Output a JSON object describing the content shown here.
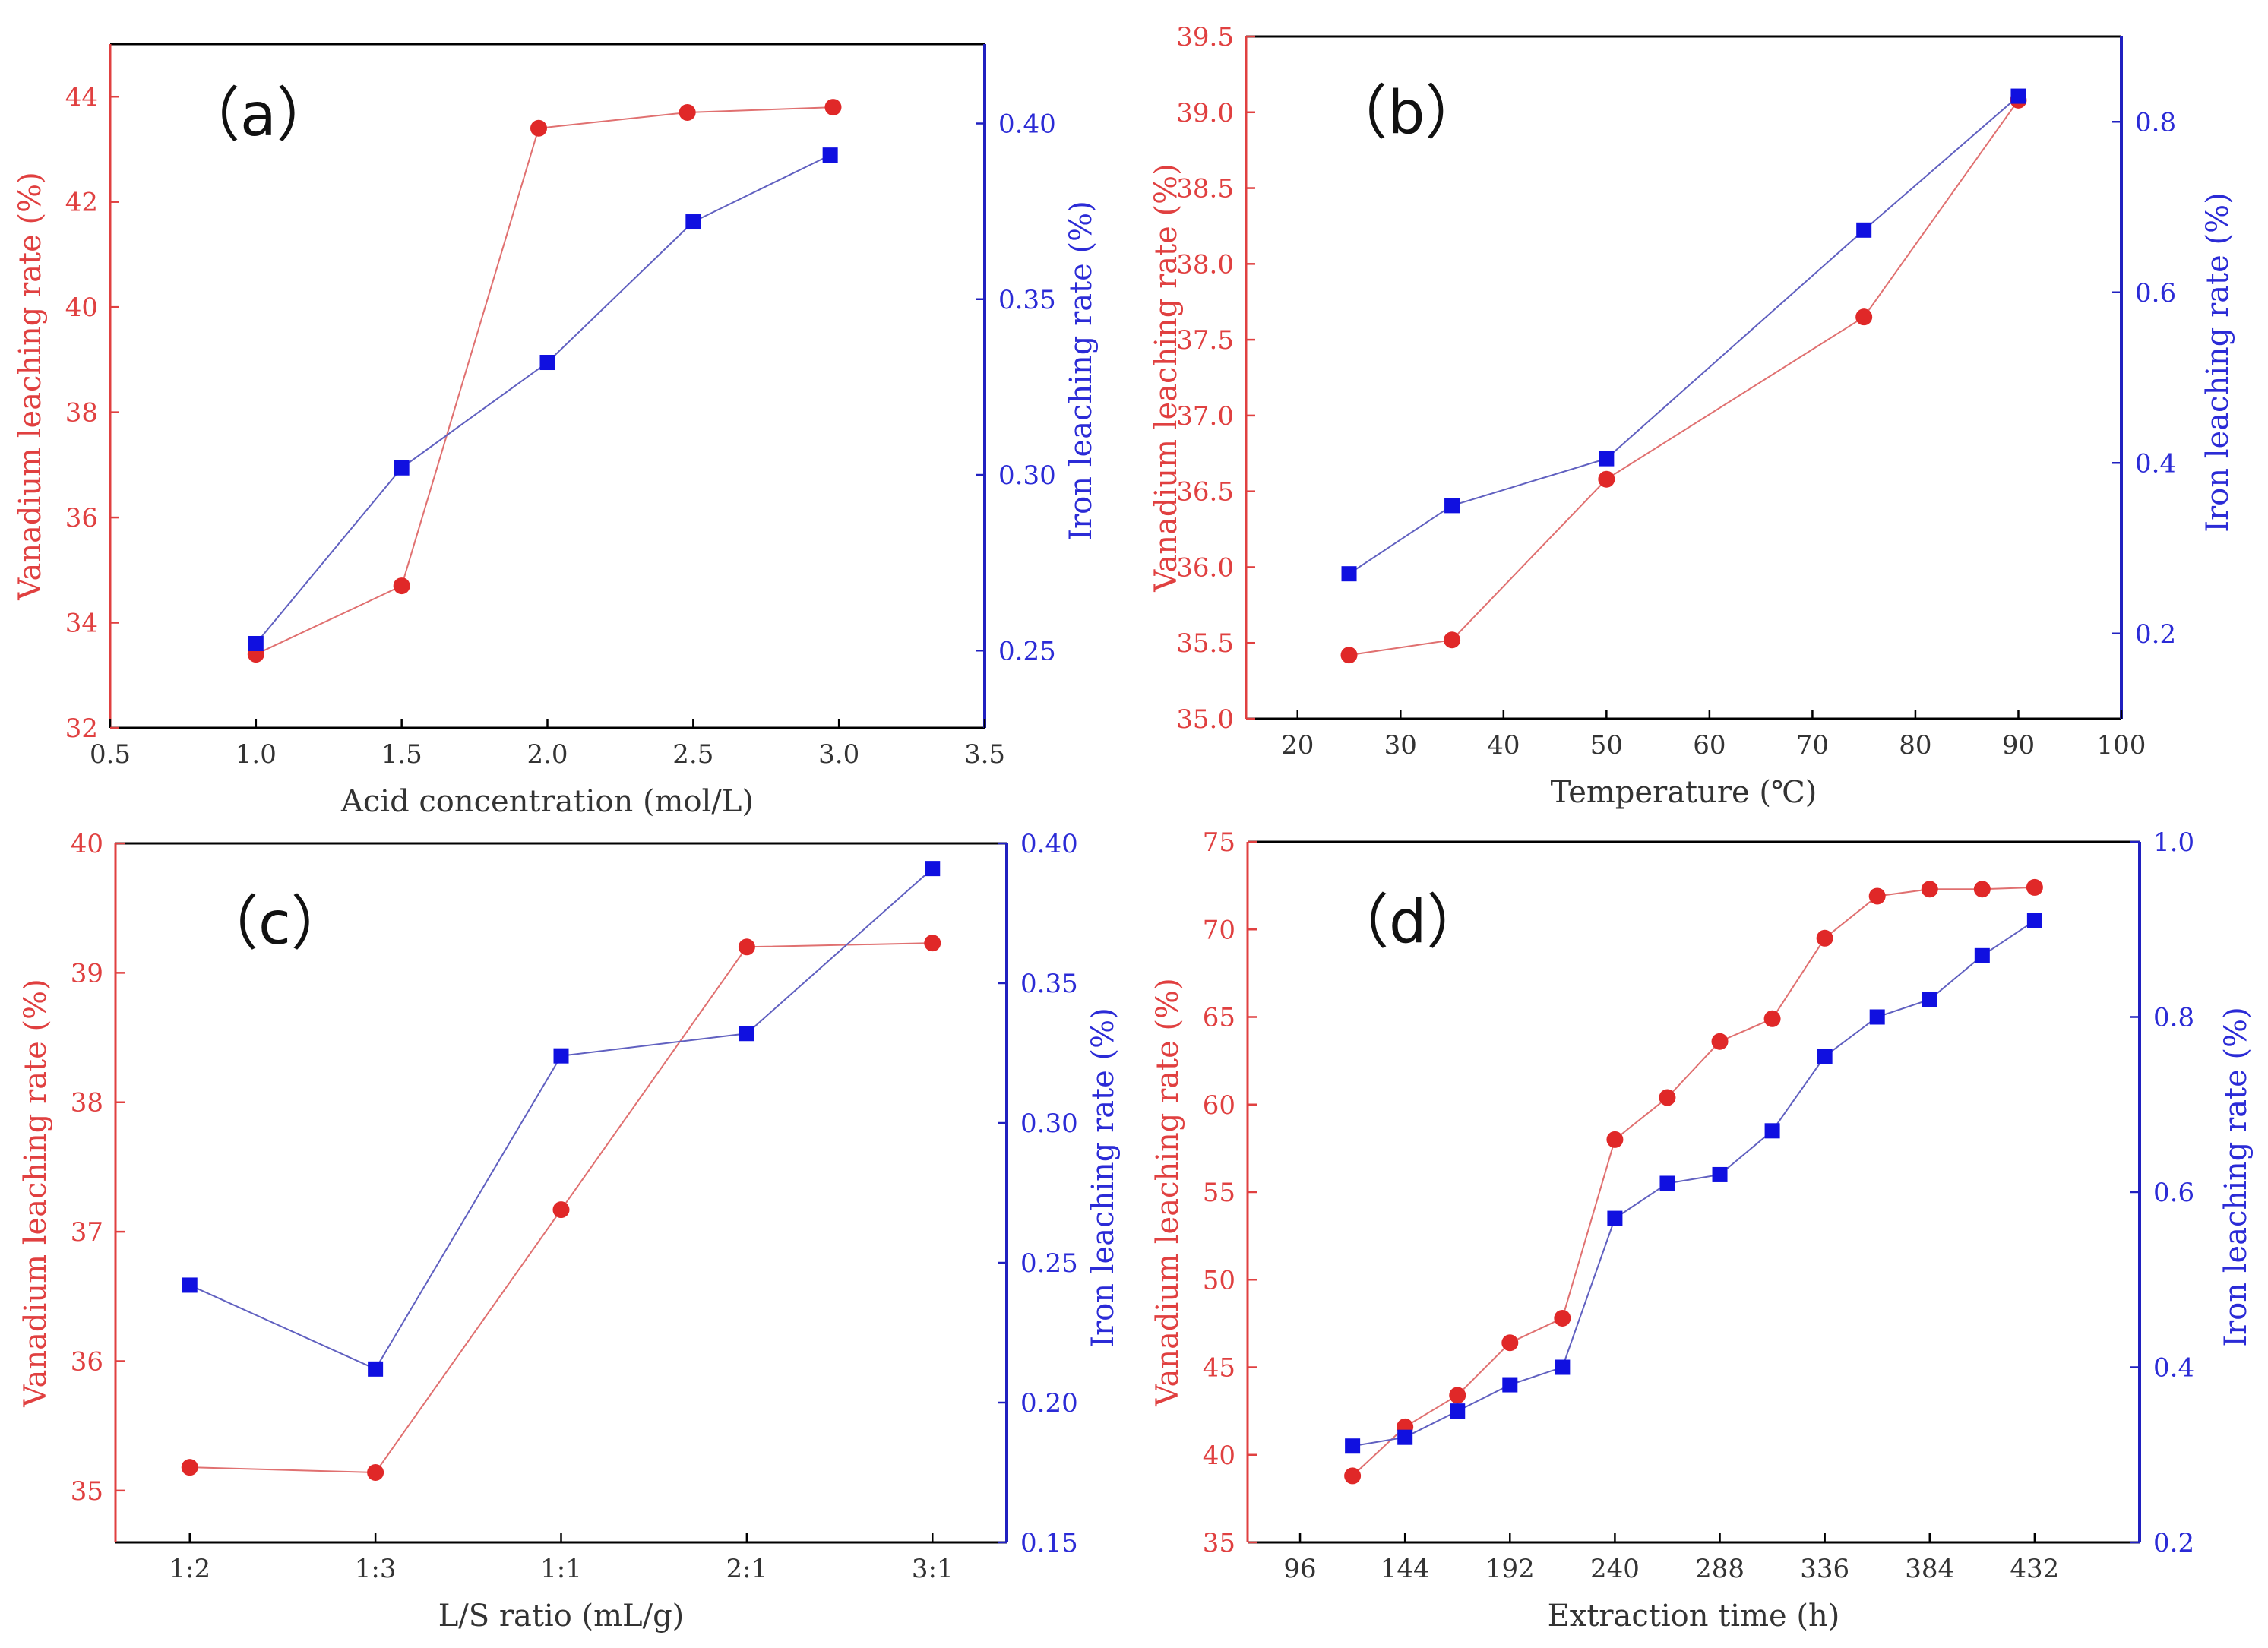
{
  "colors": {
    "vanadium": "#e02828",
    "vanadium_line": "#e07070",
    "iron": "#1010e0",
    "iron_line": "#6060c0",
    "left_axis": "#e04040",
    "right_axis": "#2020c0",
    "frame": "#000000"
  },
  "chart_data": [
    {
      "type": "line",
      "panel_label": "（a）",
      "xlabel": "Acid concentration (mol/L)",
      "ylabel_left": "Vanadium leaching rate (%)",
      "ylabel_right": "Iron leaching rate (%)",
      "xlim": [
        0.5,
        3.5
      ],
      "ylim_left": [
        32,
        45
      ],
      "ylim_right": [
        0.228,
        0.4226
      ],
      "x_ticks": [
        0.5,
        1.0,
        1.5,
        2.0,
        2.5,
        3.0,
        3.5
      ],
      "x_tick_labels": [
        "0.5",
        "1.0",
        "1.5",
        "2.0",
        "2.5",
        "3.0",
        "3.5"
      ],
      "y_left_ticks": [
        32,
        34,
        36,
        38,
        40,
        42,
        44
      ],
      "y_left_tick_labels": [
        "32",
        "34",
        "36",
        "38",
        "40",
        "42",
        "44"
      ],
      "y_right_ticks": [
        0.25,
        0.3,
        0.35,
        0.4
      ],
      "y_right_tick_labels": [
        "0.25",
        "0.30",
        "0.35",
        "0.40"
      ],
      "series": [
        {
          "name": "Vanadium",
          "axis": "left",
          "marker": "circle",
          "x": [
            1.0,
            1.5,
            1.97,
            2.48,
            2.98
          ],
          "values": [
            33.4,
            34.7,
            43.4,
            43.7,
            43.8
          ]
        },
        {
          "name": "Iron",
          "axis": "right",
          "marker": "square",
          "x": [
            1.0,
            1.5,
            2.0,
            2.5,
            2.97
          ],
          "values": [
            0.252,
            0.302,
            0.332,
            0.372,
            0.391
          ]
        }
      ]
    },
    {
      "type": "line",
      "panel_label": "（b）",
      "xlabel": "Temperature (℃)",
      "ylabel_left": "Vanadium leaching rate (%)",
      "ylabel_right": "Iron leaching rate (%)",
      "xlim": [
        15,
        100
      ],
      "ylim_left": [
        35.0,
        39.5
      ],
      "ylim_right": [
        0.1,
        0.9
      ],
      "x_ticks": [
        20,
        30,
        40,
        50,
        60,
        70,
        80,
        90,
        100
      ],
      "x_tick_labels": [
        "20",
        "30",
        "40",
        "50",
        "60",
        "70",
        "80",
        "90",
        "100"
      ],
      "y_left_ticks": [
        35.0,
        35.5,
        36.0,
        36.5,
        37.0,
        37.5,
        38.0,
        38.5,
        39.0,
        39.5
      ],
      "y_left_tick_labels": [
        "35.0",
        "35.5",
        "36.0",
        "36.5",
        "37.0",
        "37.5",
        "38.0",
        "38.5",
        "39.0",
        "39.5"
      ],
      "y_right_ticks": [
        0.2,
        0.4,
        0.6,
        0.8
      ],
      "y_right_tick_labels": [
        "0.2",
        "0.4",
        "0.6",
        "0.8"
      ],
      "series": [
        {
          "name": "Vanadium",
          "axis": "left",
          "marker": "circle",
          "x": [
            25,
            35,
            50,
            75,
            90
          ],
          "values": [
            35.42,
            35.52,
            36.58,
            37.65,
            39.08
          ]
        },
        {
          "name": "Iron",
          "axis": "right",
          "marker": "square",
          "x": [
            25,
            35,
            50,
            75,
            90
          ],
          "values": [
            0.27,
            0.35,
            0.405,
            0.673,
            0.83
          ]
        }
      ]
    },
    {
      "type": "line",
      "panel_label": "（c）",
      "xlabel": "L/S ratio (mL/g)",
      "ylabel_left": "Vanadium leaching rate (%)",
      "ylabel_right": "Iron leaching rate (%)",
      "xlim": [
        -0.4,
        4.4
      ],
      "ylim_left": [
        34.6,
        40.0
      ],
      "ylim_right": [
        0.15,
        0.4
      ],
      "x_ticks": [
        0,
        1,
        2,
        3,
        4
      ],
      "x_tick_labels": [
        "1:2",
        "1:3",
        "1:1",
        "2:1",
        "3:1"
      ],
      "y_left_ticks": [
        35,
        36,
        37,
        38,
        39,
        40
      ],
      "y_left_tick_labels": [
        "35",
        "36",
        "37",
        "38",
        "39",
        "40"
      ],
      "y_right_ticks": [
        0.15,
        0.2,
        0.25,
        0.3,
        0.35,
        0.4
      ],
      "y_right_tick_labels": [
        "0.15",
        "0.20",
        "0.25",
        "0.30",
        "0.35",
        "0.40"
      ],
      "series": [
        {
          "name": "Vanadium",
          "axis": "left",
          "marker": "circle",
          "x": [
            0,
            1,
            2,
            3,
            4
          ],
          "values": [
            35.18,
            35.14,
            37.17,
            39.2,
            39.23
          ]
        },
        {
          "name": "Iron",
          "axis": "right",
          "marker": "square",
          "x": [
            0,
            1,
            2,
            3,
            4
          ],
          "values": [
            0.242,
            0.212,
            0.324,
            0.332,
            0.391
          ]
        }
      ]
    },
    {
      "type": "line",
      "panel_label": "（d）",
      "xlabel": "Extraction time (h)",
      "ylabel_left": "Vanadium leaching rate (%)",
      "ylabel_right": "Iron leaching rate (%)",
      "xlim": [
        72,
        480
      ],
      "ylim_left": [
        35,
        75
      ],
      "ylim_right": [
        0.2,
        1.0
      ],
      "x_ticks": [
        96,
        144,
        192,
        240,
        288,
        336,
        384,
        432
      ],
      "x_tick_labels": [
        "96",
        "144",
        "192",
        "240",
        "288",
        "336",
        "384",
        "432"
      ],
      "y_left_ticks": [
        35,
        40,
        45,
        50,
        55,
        60,
        65,
        70,
        75
      ],
      "y_left_tick_labels": [
        "35",
        "40",
        "45",
        "50",
        "55",
        "60",
        "65",
        "70",
        "75"
      ],
      "y_right_ticks": [
        0.2,
        0.4,
        0.6,
        0.8,
        1.0
      ],
      "y_right_tick_labels": [
        "0.2",
        "0.4",
        "0.6",
        "0.8",
        "1.0"
      ],
      "series": [
        {
          "name": "Vanadium",
          "axis": "left",
          "marker": "circle",
          "x": [
            120,
            144,
            168,
            192,
            216,
            240,
            264,
            288,
            312,
            336,
            360,
            384,
            408,
            432
          ],
          "values": [
            38.8,
            41.6,
            43.4,
            46.4,
            47.8,
            58.0,
            60.4,
            63.6,
            64.9,
            69.5,
            71.9,
            72.3,
            72.3,
            72.4
          ]
        },
        {
          "name": "Iron",
          "axis": "right",
          "marker": "square",
          "x": [
            120,
            144,
            168,
            192,
            216,
            240,
            264,
            288,
            312,
            336,
            360,
            384,
            408,
            432
          ],
          "values": [
            0.31,
            0.32,
            0.35,
            0.38,
            0.4,
            0.57,
            0.61,
            0.62,
            0.67,
            0.755,
            0.8,
            0.82,
            0.87,
            0.91
          ]
        }
      ]
    }
  ]
}
